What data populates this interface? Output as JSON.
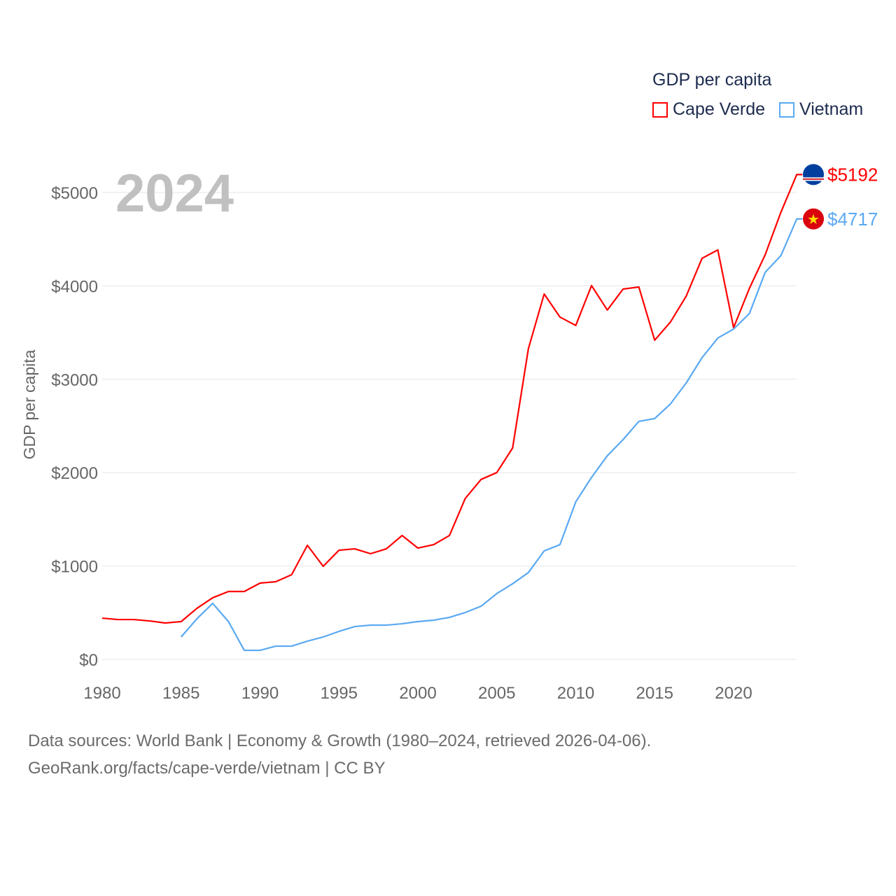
{
  "chart_data": {
    "type": "line",
    "title": "GDP per capita",
    "ylabel": "GDP per capita",
    "xlabel": "",
    "year_label": "2024",
    "xlim": [
      1980,
      2024
    ],
    "ylim": [
      0,
      5000
    ],
    "x_ticks": [
      1980,
      1985,
      1990,
      1995,
      2000,
      2005,
      2010,
      2015,
      2020
    ],
    "y_ticks": [
      0,
      1000,
      2000,
      3000,
      4000,
      5000
    ],
    "y_tick_labels": [
      "$0",
      "$1000",
      "$2000",
      "$3000",
      "$4000",
      "$5000"
    ],
    "grid": true,
    "legend_position": "top-right",
    "series": [
      {
        "name": "Cape Verde",
        "color": "#ff0000",
        "end_label": "$5192",
        "flag": "cape-verde-flag-icon",
        "start_year": 1980,
        "values": [
          442,
          427,
          427,
          412,
          390,
          405,
          547,
          660,
          727,
          727,
          817,
          832,
          907,
          1222,
          997,
          1169,
          1184,
          1132,
          1184,
          1327,
          1192,
          1229,
          1327,
          1724,
          1927,
          2001,
          2264,
          3328,
          3913,
          3666,
          3576,
          4003,
          3741,
          3966,
          3988,
          3418,
          3613,
          3891,
          4295,
          4385,
          3553,
          3973,
          4333,
          4790,
          5192
        ]
      },
      {
        "name": "Vietnam",
        "color": "#5aa9f2",
        "end_label": "$4717",
        "flag": "vietnam-flag-icon",
        "start_year": 1985,
        "values": [
          240,
          435,
          600,
          405,
          97,
          97,
          142,
          142,
          195,
          240,
          300,
          352,
          367,
          367,
          382,
          405,
          420,
          450,
          502,
          570,
          705,
          810,
          930,
          1162,
          1229,
          1687,
          1949,
          2181,
          2354,
          2549,
          2579,
          2736,
          2961,
          3231,
          3441,
          3538,
          3703,
          4145,
          4325,
          4717
        ]
      }
    ]
  },
  "footer": {
    "line1": "Data sources: World Bank | Economy & Growth (1980–2024, retrieved 2026-04-06).",
    "line2": "GeoRank.org/facts/cape-verde/vietnam | CC BY"
  }
}
